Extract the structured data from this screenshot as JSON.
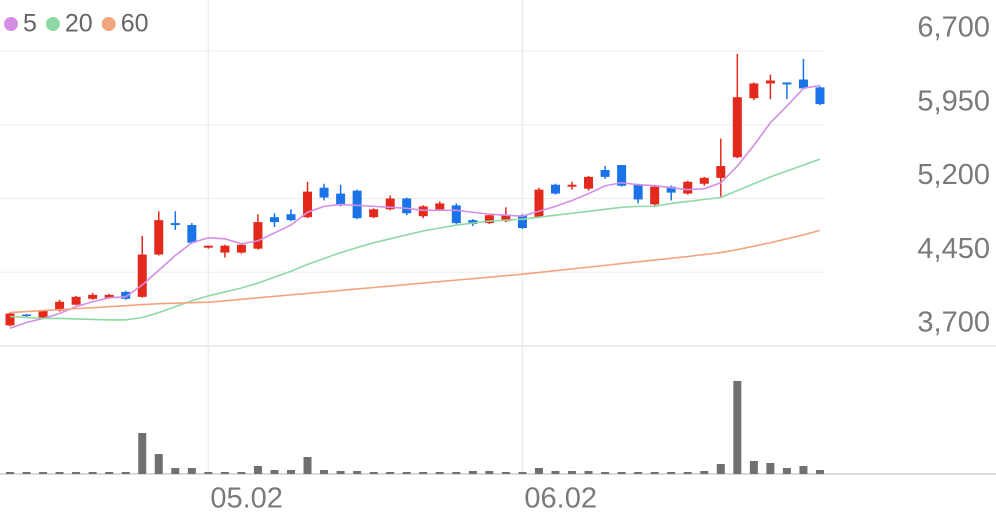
{
  "chart_data": {
    "type": "candlestick",
    "categories": [
      null,
      null,
      null,
      null,
      null,
      null,
      null,
      null,
      null,
      null,
      null,
      null,
      "05.02",
      null,
      null,
      null,
      null,
      null,
      null,
      null,
      null,
      null,
      null,
      null,
      null,
      null,
      null,
      null,
      null,
      null,
      null,
      "06.02",
      null,
      null,
      null,
      null,
      null,
      null,
      null,
      null,
      null,
      null,
      null,
      null,
      null,
      null,
      null,
      null,
      null,
      null
    ],
    "open": [
      3910,
      4020,
      3990,
      4060,
      4120,
      4180,
      4190,
      4250,
      4200,
      4630,
      4950,
      4930,
      4700,
      4650,
      4650,
      4690,
      5010,
      5040,
      5010,
      5310,
      5250,
      5280,
      5010,
      5090,
      5200,
      5020,
      5090,
      5130,
      4980,
      4950,
      4970,
      5030,
      5010,
      5340,
      5320,
      5300,
      5490,
      5540,
      5340,
      5140,
      5320,
      5250,
      5350,
      5410,
      5620,
      6220,
      6370,
      6380,
      6410,
      6330
    ],
    "high": [
      4040,
      4025,
      4065,
      4170,
      4210,
      4240,
      4230,
      4260,
      4820,
      5070,
      5070,
      4950,
      4720,
      4730,
      4730,
      5040,
      5050,
      5090,
      5370,
      5350,
      5340,
      5290,
      5100,
      5230,
      5210,
      5130,
      5170,
      5150,
      4990,
      5040,
      5110,
      5040,
      5310,
      5350,
      5370,
      5430,
      5530,
      5540,
      5350,
      5330,
      5330,
      5380,
      5420,
      5810,
      6670,
      6380,
      6460,
      6380,
      6620,
      6340
    ],
    "low": [
      3900,
      4000,
      3985,
      4050,
      4115,
      4170,
      4180,
      4170,
      4190,
      4620,
      4880,
      4740,
      4690,
      4600,
      4640,
      4680,
      4910,
      4970,
      5000,
      5180,
      5120,
      4990,
      5000,
      5080,
      5030,
      5000,
      5080,
      4940,
      4920,
      4940,
      4960,
      4890,
      5000,
      5240,
      5290,
      5280,
      5400,
      5320,
      5150,
      5130,
      5180,
      5240,
      5330,
      5220,
      5610,
      6200,
      6210,
      6210,
      6310,
      6150
    ],
    "close": [
      4030,
      4010,
      4060,
      4150,
      4200,
      4220,
      4220,
      4180,
      4630,
      4980,
      4930,
      4750,
      4720,
      4720,
      4730,
      4960,
      4960,
      4980,
      5270,
      5210,
      5130,
      5000,
      5090,
      5200,
      5050,
      5120,
      5150,
      4950,
      4940,
      5030,
      5030,
      4900,
      5290,
      5250,
      5340,
      5420,
      5420,
      5330,
      5190,
      5320,
      5260,
      5370,
      5410,
      5530,
      6230,
      6370,
      6400,
      6360,
      6320,
      6160
    ],
    "up_color": "#e3291b",
    "down_color": "#1a73e8",
    "series": [
      {
        "name": "5",
        "color": "#d48fe5",
        "values": [
          3880,
          3940,
          3980,
          4030,
          4100,
          4150,
          4190,
          4200,
          4320,
          4470,
          4620,
          4750,
          4800,
          4790,
          4740,
          4770,
          4850,
          4930,
          5060,
          5120,
          5140,
          5130,
          5120,
          5110,
          5100,
          5080,
          5080,
          5080,
          5060,
          5040,
          5030,
          5020,
          5070,
          5120,
          5180,
          5250,
          5330,
          5360,
          5340,
          5330,
          5310,
          5290,
          5300,
          5360,
          5530,
          5740,
          5970,
          6140,
          6320,
          6350
        ]
      },
      {
        "name": "20",
        "color": "#8ed9a3",
        "values": [
          4000,
          3990,
          3980,
          3980,
          3975,
          3970,
          3965,
          3965,
          3990,
          4040,
          4100,
          4160,
          4210,
          4250,
          4290,
          4340,
          4400,
          4460,
          4530,
          4590,
          4650,
          4700,
          4750,
          4790,
          4830,
          4870,
          4900,
          4930,
          4950,
          4970,
          4980,
          4990,
          5010,
          5030,
          5050,
          5070,
          5090,
          5110,
          5120,
          5120,
          5150,
          5170,
          5190,
          5210,
          5280,
          5350,
          5420,
          5480,
          5540,
          5600
        ]
      },
      {
        "name": "60",
        "color": "#f2a47e",
        "values": [
          4040,
          4050,
          4060,
          4070,
          4080,
          4090,
          4100,
          4110,
          4120,
          4130,
          4135,
          4140,
          4146,
          4160,
          4175,
          4190,
          4205,
          4220,
          4235,
          4250,
          4265,
          4280,
          4295,
          4310,
          4325,
          4340,
          4355,
          4370,
          4385,
          4400,
          4415,
          4430,
          4448,
          4466,
          4484,
          4502,
          4520,
          4538,
          4556,
          4574,
          4592,
          4610,
          4630,
          4650,
          4680,
          4715,
          4750,
          4790,
          4830,
          4876
        ]
      }
    ],
    "volume": [
      2,
      2,
      2,
      2,
      2,
      2,
      2,
      2,
      41,
      20,
      6,
      6,
      2,
      2,
      2,
      8,
      4,
      4,
      17,
      4,
      3,
      3,
      2,
      2,
      2,
      2,
      2,
      2,
      3,
      3,
      2,
      2,
      6,
      3,
      3,
      3,
      2,
      2,
      2,
      2,
      2,
      2,
      3,
      10,
      93,
      13,
      11,
      6,
      8,
      4
    ],
    "volume_color": "#707070",
    "volume_ylim": [
      0,
      93
    ],
    "ylim": [
      3700,
      6700
    ],
    "yticks": [
      {
        "value": 3700,
        "label": "3,700"
      },
      {
        "value": 4450,
        "label": "4,450"
      },
      {
        "value": 5200,
        "label": "5,200"
      },
      {
        "value": 5950,
        "label": "5,950"
      },
      {
        "value": 6700,
        "label": "6,700"
      }
    ],
    "grid": true
  }
}
